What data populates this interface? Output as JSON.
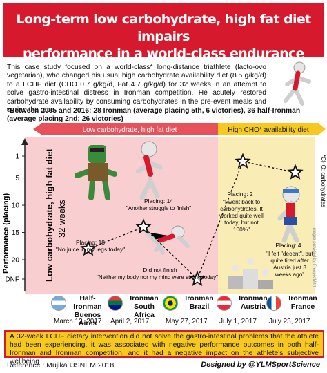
{
  "title": {
    "line1": "Long-term low carbohydrate, high fat diet impairs",
    "line2": "performance in a world-class endurance athlete"
  },
  "intro": "This case study focused on a world-class* long-distance triathlete (lacto-ovo vegetarian), who changed his usual high carbohydrate availability diet (8.5 g/kg/d) to a LCHF diet (CHO 0.7 g/kg/d, Fat 4.7 g/kg/d) for 32 weeks in an attempt to solve gastro-intestinal distress in Ironman competition. He acutely restored carbohydrate availability by consuming carbohydrates in the pre-event meals and during the race",
  "between": "*Between 2005 and 2016: 28 Ironman (average placing 5th, 6 victories), 36 half-Ironman (average placing 2nd; 26 victories)",
  "colors": {
    "red": "#d7192d",
    "lchf_band": "#f4a6aa",
    "lchf_header": "#e8515a",
    "hcho_band": "#f9e7a3",
    "hcho_header": "#f7c81e",
    "conclusion_bg": "#f7c81e"
  },
  "chart_data": {
    "type": "scatter",
    "ylabel": "Performance (placing)",
    "yticks": [
      "1",
      "5",
      "10",
      "15",
      "20",
      "DNF"
    ],
    "phases": [
      {
        "label": "Low carbohydrate, high fat diet",
        "vertical_label_1": "Low carbohydrate, high fat diet",
        "vertical_label_2": "32 weeks"
      },
      {
        "label": "High CHO* availability diet"
      }
    ],
    "side_note": "*CHO: carbohydrates",
    "credit_note": "Images provided by Freepik/Mitrt",
    "points": [
      {
        "race": "Half-Ironman Buenos Aires",
        "date": "March 12, 2017",
        "placing": 18,
        "label": "Placing: 18",
        "quote": "\"No juice in my legs today\""
      },
      {
        "race": "Ironman South Africa",
        "date": "April 2, 2017",
        "placing": 14,
        "label": "Placing: 14",
        "quote": "\"Another struggle to finish\""
      },
      {
        "race": "Ironman Brazil",
        "date": "May 27, 2017",
        "placing": "DNF",
        "label": "Did not finish",
        "quote": "\"Neither my body nor my mind were strong today\""
      },
      {
        "race": "Ironman Austria",
        "date": "July 1, 2017",
        "placing": 2,
        "label": "Placing: 2",
        "quote": "\"I went back to carbohydrates. It worked quite well today, but not 100%\""
      },
      {
        "race": "Ironman France",
        "date": "July 23, 2017",
        "placing": 4,
        "label": "Placing: 4",
        "quote": "\"I felt \"decent\", but quite tired after Austria just 3 weeks ago\""
      }
    ]
  },
  "races": [
    {
      "name_line1": "Half-Ironman",
      "name_line2": "Buenos Aires",
      "date": "March 12, 2017",
      "flag": "argentina-flag"
    },
    {
      "name_line1": "Ironman",
      "name_line2": "South Africa",
      "date": "April 2, 2017",
      "flag": "south-africa-flag"
    },
    {
      "name_line1": "Ironman",
      "name_line2": "Brazil",
      "date": "May 27, 2017",
      "flag": "brazil-flag"
    },
    {
      "name_line1": "Ironman",
      "name_line2": "Austria",
      "date": "July 1, 2017",
      "flag": "austria-flag"
    },
    {
      "name_line1": "Ironman",
      "name_line2": "France",
      "date": "July 23, 2017",
      "flag": "france-flag"
    }
  ],
  "conclusion": "A 32-week LCHF dietary intervention did not solve the gastro-intestinal problems that the athlete had been experiencing, it was associated with negative performance outcomes in both half-Ironman and Ironman competition, and it had a negative impact on the athlete's subjective wellbeing",
  "reference": "Reference : Mujika IJSNEM 2018",
  "credit": "Designed by @YLMSportScience"
}
